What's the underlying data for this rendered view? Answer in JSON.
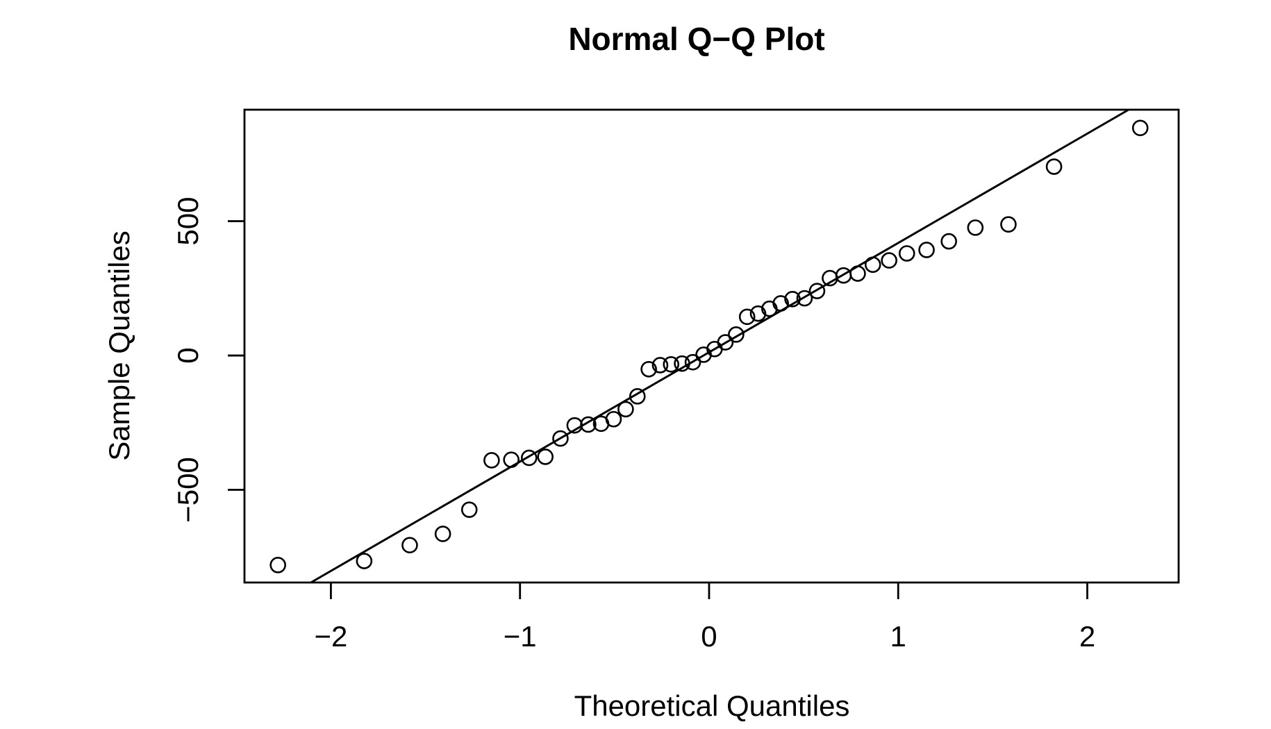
{
  "figure": {
    "background_color": "#ffffff",
    "foreground_color": "#000000"
  },
  "chart_data": {
    "type": "scatter",
    "subtype": "normal-qq-plot",
    "title": "Normal Q−Q Plot",
    "xlabel": "Theoretical Quantiles",
    "ylabel": "Sample Quantiles",
    "grid": false,
    "legend": null,
    "xlim": [
      -2.457,
      2.483
    ],
    "ylim": [
      -845,
      915
    ],
    "xticks": [
      {
        "value": -2,
        "label": "−2"
      },
      {
        "value": -1,
        "label": "−1"
      },
      {
        "value": 0,
        "label": "0"
      },
      {
        "value": 1,
        "label": "1"
      },
      {
        "value": 2,
        "label": "2"
      }
    ],
    "yticks": [
      {
        "value": -500,
        "label": "−500"
      },
      {
        "value": 0,
        "label": "0"
      },
      {
        "value": 500,
        "label": "500"
      }
    ],
    "point_style": {
      "marker": "open-circle",
      "radius_px": 10.5,
      "stroke": "#000000",
      "stroke_width_px": 2.6,
      "fill": "none"
    },
    "reference_line": {
      "description": "qqline through sample quartiles",
      "slope": 407,
      "intercept": 12,
      "stroke": "#000000",
      "stroke_width_px": 3
    },
    "n_points": 44,
    "series": [
      {
        "name": "sample",
        "x": [
          -2.28,
          -1.824,
          -1.583,
          -1.408,
          -1.268,
          -1.15,
          -1.046,
          -0.952,
          -0.866,
          -0.786,
          -0.711,
          -0.639,
          -0.571,
          -0.505,
          -0.441,
          -0.379,
          -0.319,
          -0.259,
          -0.201,
          -0.143,
          -0.086,
          -0.029,
          0.029,
          0.086,
          0.143,
          0.201,
          0.259,
          0.319,
          0.379,
          0.441,
          0.505,
          0.571,
          0.639,
          0.711,
          0.786,
          0.866,
          0.952,
          1.046,
          1.15,
          1.268,
          1.408,
          1.583,
          1.824,
          2.28
        ],
        "y": [
          -780,
          -765,
          -706,
          -664,
          -574,
          -390,
          -388,
          -381,
          -377,
          -309,
          -260,
          -257,
          -254,
          -237,
          -200,
          -152,
          -51,
          -36,
          -33,
          -30,
          -25,
          3,
          24,
          49,
          78,
          144,
          156,
          174,
          194,
          210,
          213,
          240,
          288,
          298,
          305,
          338,
          354,
          380,
          393,
          425,
          476,
          488,
          703,
          847
        ]
      }
    ]
  }
}
